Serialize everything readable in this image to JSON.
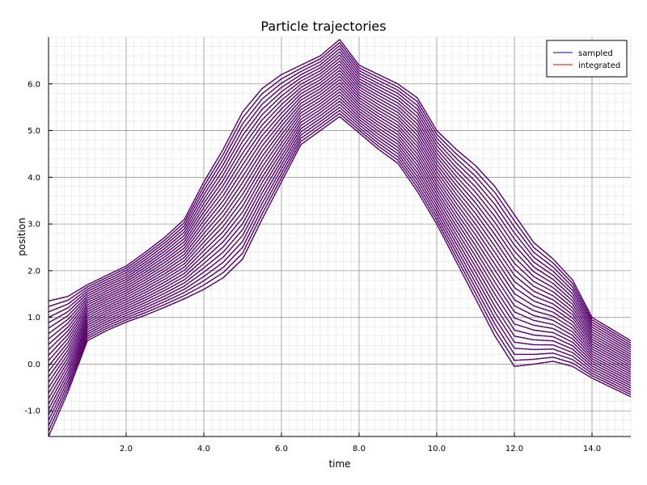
{
  "chart_data": {
    "type": "line",
    "title": "Particle trajectories",
    "xlabel": "time",
    "ylabel": "position",
    "xlim": [
      0,
      15
    ],
    "ylim": [
      -1.55,
      7.0
    ],
    "grid": true,
    "minor_grid": true,
    "legend_placement": "top-right",
    "x_ticks": [
      2,
      4,
      6,
      8,
      10,
      12,
      14
    ],
    "x_tick_labels": [
      "2.0",
      "4.0",
      "6.0",
      "8.0",
      "10.0",
      "12.0",
      "14.0"
    ],
    "y_ticks": [
      -1,
      0,
      1,
      2,
      3,
      4,
      5,
      6
    ],
    "y_tick_labels": [
      "-1.0",
      "0.0",
      "1.0",
      "2.0",
      "3.0",
      "4.0",
      "5.0",
      "6.0"
    ],
    "series": [
      {
        "name": "sampled",
        "color": "#0000aa"
      },
      {
        "name": "integrated",
        "color": "#ee0000"
      }
    ],
    "trajectory_count": 26,
    "x": [
      0,
      0.5,
      1,
      1.5,
      2,
      2.5,
      3,
      3.5,
      4,
      4.5,
      5,
      5.5,
      6,
      6.5,
      7,
      7.5,
      8,
      8.5,
      9,
      9.5,
      10,
      10.5,
      11,
      11.5,
      12,
      12.5,
      13,
      13.5,
      14,
      14.5,
      15
    ],
    "lower_envelope": [
      -1.55,
      -0.6,
      0.5,
      0.72,
      0.9,
      1.05,
      1.22,
      1.4,
      1.6,
      1.85,
      2.25,
      3.1,
      3.9,
      4.7,
      5.0,
      5.3,
      4.95,
      4.6,
      4.3,
      3.7,
      3.0,
      2.2,
      1.4,
      0.6,
      -0.05,
      0.0,
      0.06,
      -0.05,
      -0.3,
      -0.5,
      -0.7
    ],
    "upper_envelope": [
      1.35,
      1.45,
      1.7,
      1.9,
      2.1,
      2.4,
      2.72,
      3.1,
      3.9,
      4.6,
      5.4,
      5.9,
      6.2,
      6.4,
      6.6,
      6.95,
      6.4,
      6.2,
      6.0,
      5.7,
      5.0,
      4.6,
      4.25,
      3.8,
      3.2,
      2.6,
      2.25,
      1.8,
      1.0,
      0.75,
      0.5
    ]
  }
}
